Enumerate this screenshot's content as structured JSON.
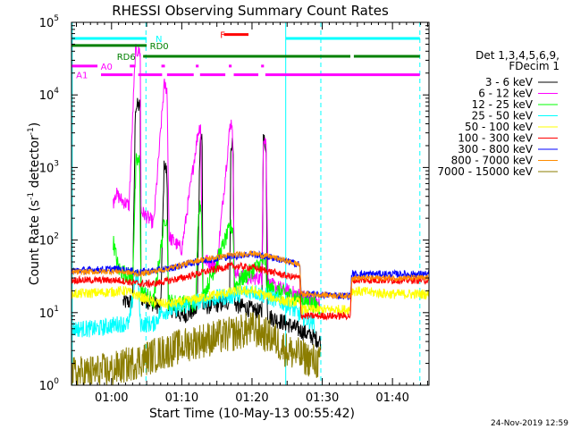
{
  "chart_data": {
    "type": "line",
    "title": "RHESSI Observing Summary Count Rates",
    "xlabel": "Start Time (10-May-13 00:55:42)",
    "ylabel_main": "Count Rate (s",
    "ylabel_sup1": "-1",
    "ylabel_mid": " detector",
    "ylabel_sup2": "-1",
    "ylabel_end": ")",
    "y_scale": "log",
    "ylim": [
      1,
      100000
    ],
    "xlim_minutes": [
      -5.7,
      45.2
    ],
    "x_ticks": [
      {
        "label": "01:00",
        "min": 0
      },
      {
        "label": "01:10",
        "min": 10
      },
      {
        "label": "01:20",
        "min": 20
      },
      {
        "label": "01:30",
        "min": 30
      },
      {
        "label": "01:40",
        "min": 40
      }
    ],
    "y_ticks": [
      {
        "base": "10",
        "exp": "0",
        "value": 1
      },
      {
        "base": "10",
        "exp": "1",
        "value": 10
      },
      {
        "base": "10",
        "exp": "2",
        "value": 100
      },
      {
        "base": "10",
        "exp": "3",
        "value": 1000
      },
      {
        "base": "10",
        "exp": "4",
        "value": 10000
      },
      {
        "base": "10",
        "exp": "5",
        "value": 100000
      }
    ],
    "legend_title_1": "Det 1,3,4,5,6,9,",
    "legend_title_2": "FDecim 1",
    "legend_placement": "right",
    "footer_date": "24-Nov-2019 12:59",
    "flare_peaks_minutes": [
      3.5,
      7.8,
      12.4,
      17.0,
      21.6
    ],
    "series": [
      {
        "name": "3 - 6 keV",
        "color": "#000000",
        "noise": 0.12,
        "points": [
          [
            -5.7,
            0
          ],
          [
            -5.7,
            0
          ],
          [
            1,
            0
          ],
          [
            1.6,
            14
          ],
          [
            3.0,
            14
          ],
          [
            3.4,
            7000
          ],
          [
            4.1,
            7000
          ],
          [
            4.2,
            16
          ],
          [
            7.0,
            12
          ],
          [
            7.5,
            1200
          ],
          [
            7.9,
            800
          ],
          [
            8.1,
            12
          ],
          [
            10,
            9
          ],
          [
            12.2,
            11
          ],
          [
            12.6,
            2600
          ],
          [
            12.9,
            2600
          ],
          [
            13.0,
            12
          ],
          [
            16.8,
            14
          ],
          [
            17.0,
            2200
          ],
          [
            17.3,
            2200
          ],
          [
            17.5,
            13
          ],
          [
            21.4,
            10
          ],
          [
            21.6,
            2400
          ],
          [
            22,
            2100
          ],
          [
            22.2,
            9
          ],
          [
            25,
            7
          ],
          [
            28,
            5
          ],
          [
            29.8,
            4
          ],
          [
            30,
            0
          ],
          [
            45.2,
            0
          ]
        ]
      },
      {
        "name": "6 - 12 keV",
        "color": "#ff00ff",
        "noise": 0.1,
        "points": [
          [
            -5.7,
            0
          ],
          [
            0,
            0
          ],
          [
            0.2,
            300
          ],
          [
            0.5,
            450
          ],
          [
            1.5,
            350
          ],
          [
            2.5,
            300
          ],
          [
            3.4,
            40000
          ],
          [
            4.1,
            40000
          ],
          [
            4.2,
            250
          ],
          [
            6,
            170
          ],
          [
            7.5,
            14000
          ],
          [
            7.9,
            12000
          ],
          [
            8.2,
            110
          ],
          [
            10,
            75
          ],
          [
            12.3,
            3000
          ],
          [
            12.7,
            4000
          ],
          [
            12.9,
            55
          ],
          [
            15,
            45
          ],
          [
            16.9,
            4000
          ],
          [
            17.2,
            4200
          ],
          [
            17.5,
            35
          ],
          [
            19,
            30
          ],
          [
            21.4,
            30
          ],
          [
            21.6,
            2300
          ],
          [
            22,
            2300
          ],
          [
            22.3,
            25
          ],
          [
            25,
            20
          ],
          [
            28,
            16
          ],
          [
            29.7,
            13
          ],
          [
            30,
            0
          ],
          [
            45.2,
            0
          ]
        ]
      },
      {
        "name": "12 - 25 keV",
        "color": "#00ff00",
        "noise": 0.12,
        "points": [
          [
            -5.7,
            0
          ],
          [
            0,
            0
          ],
          [
            0.2,
            100
          ],
          [
            1.0,
            40
          ],
          [
            3.0,
            30
          ],
          [
            3.5,
            1200
          ],
          [
            4.0,
            1200
          ],
          [
            4.2,
            20
          ],
          [
            6,
            14
          ],
          [
            7.6,
            200
          ],
          [
            7.9,
            200
          ],
          [
            8.1,
            14
          ],
          [
            12,
            13
          ],
          [
            12.4,
            300
          ],
          [
            12.8,
            300
          ],
          [
            13,
            16
          ],
          [
            16.9,
            150
          ],
          [
            17.3,
            150
          ],
          [
            17.5,
            24
          ],
          [
            21.5,
            50
          ],
          [
            21.9,
            50
          ],
          [
            22.1,
            22
          ],
          [
            25,
            18
          ],
          [
            28,
            14
          ],
          [
            29.7,
            12
          ],
          [
            30,
            0
          ],
          [
            45.2,
            0
          ]
        ]
      },
      {
        "name": "25 - 50 keV",
        "color": "#00ffff",
        "noise": 0.12,
        "points": [
          [
            -5.7,
            6
          ],
          [
            -2,
            6
          ],
          [
            1,
            7
          ],
          [
            2.5,
            7
          ],
          [
            3.4,
            30
          ],
          [
            3.8,
            30
          ],
          [
            4.1,
            7
          ],
          [
            6,
            7
          ],
          [
            7,
            10
          ],
          [
            10,
            12
          ],
          [
            13,
            15
          ],
          [
            17,
            17
          ],
          [
            20,
            20
          ],
          [
            22,
            17
          ],
          [
            25,
            13
          ],
          [
            27,
            9
          ],
          [
            29,
            7
          ],
          [
            30,
            0
          ],
          [
            34,
            0
          ],
          [
            34.2,
            0
          ],
          [
            45.2,
            0
          ]
        ]
      },
      {
        "name": "50 - 100 keV",
        "color": "#ffff00",
        "noise": 0.07,
        "points": [
          [
            -5.7,
            18
          ],
          [
            -1,
            19
          ],
          [
            2,
            20
          ],
          [
            6,
            14
          ],
          [
            8,
            13
          ],
          [
            10,
            14
          ],
          [
            14,
            17
          ],
          [
            18,
            20
          ],
          [
            20,
            20
          ],
          [
            23,
            16
          ],
          [
            25,
            14
          ],
          [
            26.8,
            14
          ],
          [
            27,
            11
          ],
          [
            34,
            11
          ],
          [
            34.2,
            20
          ],
          [
            40,
            18
          ],
          [
            45.2,
            18
          ]
        ]
      },
      {
        "name": "100 - 300 keV",
        "color": "#ff0000",
        "noise": 0.05,
        "points": [
          [
            -5.7,
            28
          ],
          [
            1,
            28
          ],
          [
            4,
            25
          ],
          [
            6,
            25
          ],
          [
            10,
            30
          ],
          [
            14,
            38
          ],
          [
            17,
            44
          ],
          [
            20,
            42
          ],
          [
            23,
            36
          ],
          [
            25,
            32
          ],
          [
            26.8,
            30
          ],
          [
            27,
            9
          ],
          [
            34,
            9
          ],
          [
            34.2,
            28
          ],
          [
            45.2,
            28
          ]
        ]
      },
      {
        "name": "300 - 800 keV",
        "color": "#0000ff",
        "noise": 0.05,
        "points": [
          [
            -5.7,
            38
          ],
          [
            1,
            40
          ],
          [
            4,
            36
          ],
          [
            8,
            40
          ],
          [
            12,
            50
          ],
          [
            17,
            60
          ],
          [
            20,
            64
          ],
          [
            23,
            57
          ],
          [
            26,
            48
          ],
          [
            26.8,
            46
          ],
          [
            27,
            18
          ],
          [
            34,
            17
          ],
          [
            34.2,
            34
          ],
          [
            45.2,
            34
          ]
        ]
      },
      {
        "name": "800 - 7000 keV",
        "color": "#ff8c00",
        "noise": 0.04,
        "points": [
          [
            -5.7,
            36
          ],
          [
            1,
            37
          ],
          [
            4,
            34
          ],
          [
            8,
            40
          ],
          [
            12,
            52
          ],
          [
            17,
            62
          ],
          [
            20,
            66
          ],
          [
            23,
            58
          ],
          [
            26,
            48
          ],
          [
            26.8,
            46
          ],
          [
            27,
            18
          ],
          [
            34,
            17
          ],
          [
            34.2,
            30
          ],
          [
            45.2,
            30
          ]
        ]
      },
      {
        "name": "7000 - 15000 keV",
        "color": "#8b7d00",
        "noise": 0.25,
        "points": [
          [
            -5.7,
            1.4
          ],
          [
            -3,
            1.5
          ],
          [
            0,
            1.6
          ],
          [
            4,
            2.2
          ],
          [
            8,
            3
          ],
          [
            12,
            4
          ],
          [
            17,
            5
          ],
          [
            20,
            6
          ],
          [
            23,
            4.5
          ],
          [
            25,
            3
          ],
          [
            27,
            2.5
          ],
          [
            29.8,
            2
          ],
          [
            30,
            0
          ],
          [
            45.2,
            0
          ]
        ]
      }
    ],
    "vertical_lines": [
      {
        "min": -5.6,
        "style": "solid",
        "color": "#00ffff"
      },
      {
        "min": 4.9,
        "style": "dashed",
        "color": "#00ffff"
      },
      {
        "min": 24.8,
        "style": "solid",
        "color": "#00ffff"
      },
      {
        "min": 29.8,
        "style": "dashed",
        "color": "#00ffff"
      },
      {
        "min": 43.9,
        "style": "dashed",
        "color": "#00ffff"
      }
    ],
    "flag_bars": [
      {
        "label": "N",
        "color": "#00ffff",
        "value": 60000,
        "segments": [
          [
            -5.7,
            5.0
          ],
          [
            24.8,
            43.9
          ]
        ],
        "label_at": 6.0,
        "label_side": "right"
      },
      {
        "label": "RD0",
        "color": "#008000",
        "value": 48000,
        "segments": [
          [
            -5.7,
            5.0
          ]
        ],
        "label_at": 5.2,
        "label_side": "right"
      },
      {
        "label": "RD6",
        "color": "#008000",
        "value": 34000,
        "segments": [
          [
            4.5,
            34
          ],
          [
            34.5,
            43.9
          ]
        ],
        "label_at": 0.5,
        "label_side": "right"
      },
      {
        "label": "F",
        "color": "#ff0000",
        "value": 68000,
        "segments": [
          [
            16.0,
            19.5
          ]
        ],
        "label_at": 15.2,
        "label_side": "right"
      },
      {
        "label": "A0",
        "color": "#ff00ff",
        "value": 25000,
        "segments": [
          [
            -5.7,
            -2.0
          ],
          [
            2.6,
            3.4
          ],
          [
            7.1,
            7.6
          ],
          [
            12.0,
            12.4
          ],
          [
            16.7,
            17.1
          ],
          [
            21.3,
            21.7
          ]
        ],
        "label_at": -1.8,
        "label_side": "right"
      },
      {
        "label": "A1",
        "color": "#ff00ff",
        "value": 19000,
        "segments": [
          [
            -1.5,
            3.0
          ],
          [
            3.8,
            7.2
          ],
          [
            7.9,
            11.7
          ],
          [
            12.6,
            16.2
          ],
          [
            17.4,
            20.9
          ],
          [
            21.9,
            43.9
          ]
        ],
        "label_at": -5.3,
        "label_side": "right"
      }
    ]
  }
}
